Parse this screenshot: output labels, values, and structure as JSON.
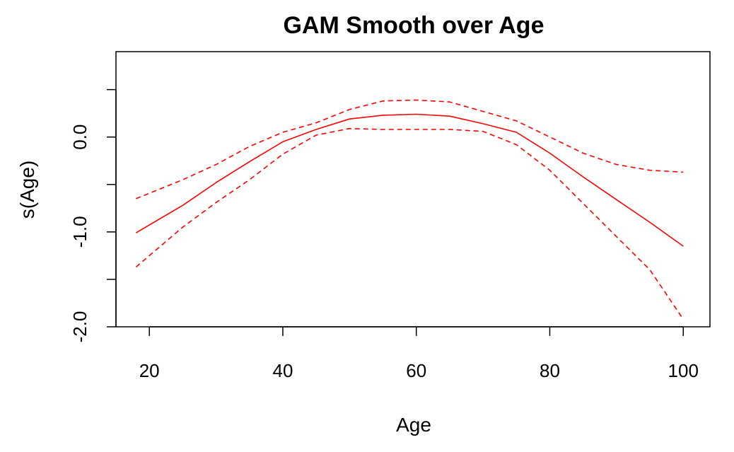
{
  "chart_data": {
    "type": "line",
    "title": "GAM Smooth over Age",
    "xlabel": "Age",
    "ylabel": "s(Age)",
    "xlim": [
      15,
      104
    ],
    "ylim": [
      -2.0,
      0.9
    ],
    "x_ticks": [
      "20",
      "40",
      "60",
      "80",
      "100"
    ],
    "x_tick_values": [
      20,
      40,
      60,
      80,
      100
    ],
    "y_ticks": [
      "-2.0",
      "-1.0",
      "0.0"
    ],
    "y_tick_values": [
      -2.0,
      -1.0,
      0.0
    ],
    "y_minor_tick_values": [
      -1.5,
      -0.5,
      0.5
    ],
    "grid": false,
    "line_color": "#ff0000",
    "series": [
      {
        "style": "solid",
        "x": [
          18,
          25,
          30,
          35,
          40,
          45,
          50,
          55,
          60,
          65,
          70,
          75,
          80,
          85,
          90,
          95,
          100
        ],
        "y": [
          -1.01,
          -0.72,
          -0.48,
          -0.26,
          -0.05,
          0.08,
          0.19,
          0.23,
          0.24,
          0.22,
          0.14,
          0.05,
          -0.17,
          -0.42,
          -0.66,
          -0.9,
          -1.15
        ]
      },
      {
        "style": "dashed",
        "x": [
          18,
          25,
          30,
          35,
          40,
          45,
          50,
          55,
          60,
          65,
          70,
          75,
          80,
          85,
          90,
          95,
          100
        ],
        "y": [
          -0.65,
          -0.45,
          -0.29,
          -0.1,
          0.05,
          0.15,
          0.29,
          0.38,
          0.39,
          0.37,
          0.27,
          0.17,
          0.0,
          -0.17,
          -0.29,
          -0.35,
          -0.37
        ]
      },
      {
        "style": "dashed",
        "x": [
          18,
          25,
          30,
          35,
          40,
          45,
          50,
          55,
          60,
          65,
          70,
          75,
          80,
          85,
          90,
          95,
          100
        ],
        "y": [
          -1.37,
          -0.95,
          -0.69,
          -0.45,
          -0.18,
          0.02,
          0.09,
          0.08,
          0.08,
          0.08,
          0.06,
          -0.08,
          -0.35,
          -0.7,
          -1.05,
          -1.4,
          -1.92
        ]
      }
    ]
  }
}
